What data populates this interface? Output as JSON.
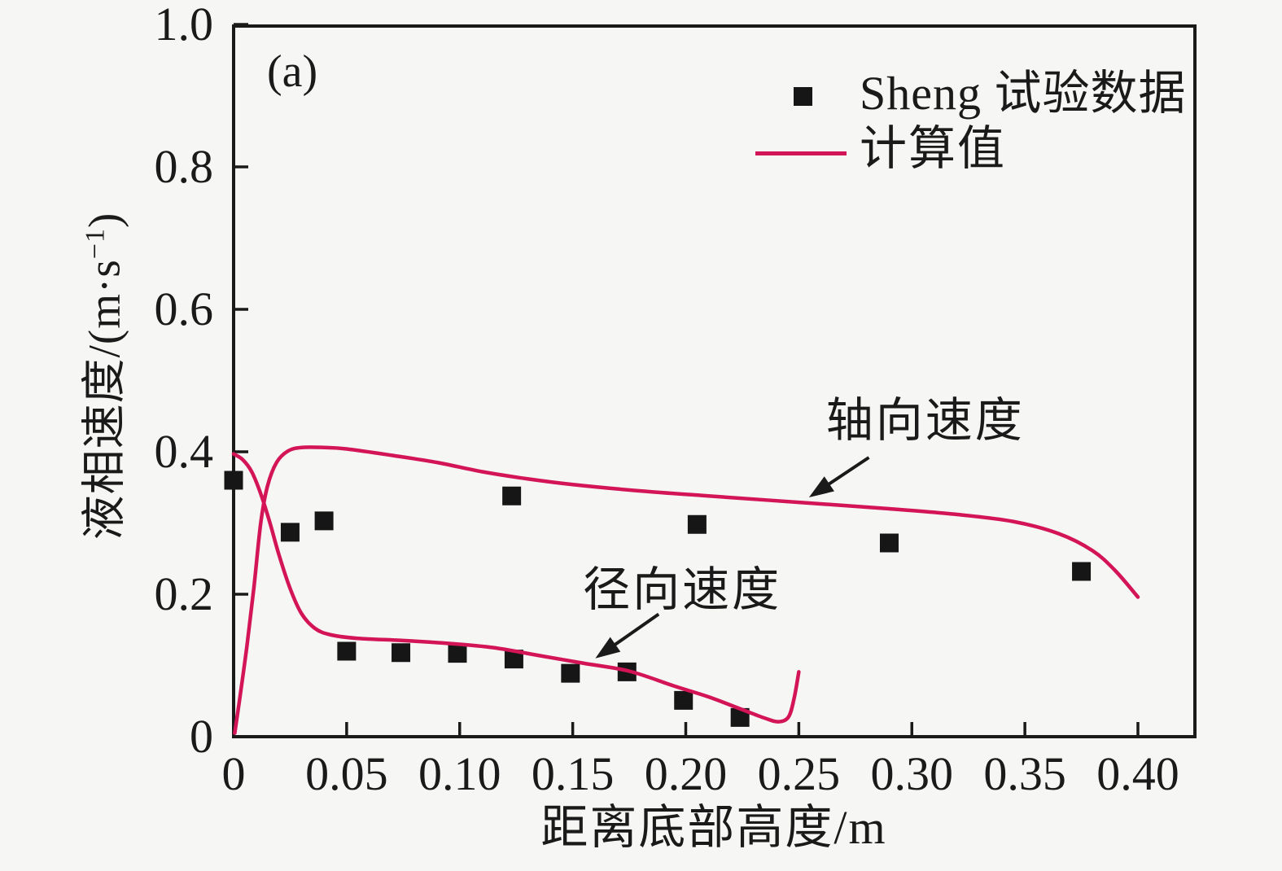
{
  "page": {
    "background": "#f6f6f4",
    "ink_color": "#1a1a1a"
  },
  "labels": {
    "panel": "(a)",
    "ylabel_main": "液相速度/(m·s",
    "ylabel_sup": "−1",
    "ylabel_close": ")"
  },
  "chart_data": {
    "type": "line",
    "panel": "(a)",
    "xlabel": "距离底部高度/m",
    "ylabel": "液相速度/(m·s⁻¹)",
    "xlim": [
      0,
      0.425
    ],
    "ylim": [
      0,
      1.0
    ],
    "grid": false,
    "legend_position": "upper-right-inside",
    "xticks": [
      0,
      0.05,
      0.1,
      0.15,
      0.2,
      0.25,
      0.3,
      0.35,
      0.4
    ],
    "xtick_labels": [
      "0",
      "0.05",
      "0.10",
      "0.15",
      "0.20",
      "0.25",
      "0.30",
      "0.35",
      "0.40"
    ],
    "yticks": [
      0,
      0.2,
      0.4,
      0.6,
      0.8,
      1.0
    ],
    "ytick_labels": [
      "0",
      "0.2",
      "0.4",
      "0.6",
      "0.8",
      "1.0"
    ],
    "legend": [
      {
        "label": "Sheng 试验数据",
        "kind": "marker",
        "color": "#161616"
      },
      {
        "label": "计算值",
        "kind": "line",
        "color": "#d31557"
      }
    ],
    "series": [
      {
        "name": "Sheng 试验数据 — 轴向速度",
        "kind": "scatter",
        "marker": "square",
        "color": "#161616",
        "points": [
          [
            0,
            0.36
          ],
          [
            0.025,
            0.287
          ],
          [
            0.04,
            0.303
          ],
          [
            0.123,
            0.338
          ],
          [
            0.205,
            0.298
          ],
          [
            0.29,
            0.272
          ],
          [
            0.375,
            0.232
          ]
        ]
      },
      {
        "name": "Sheng 试验数据 — 径向速度",
        "kind": "scatter",
        "marker": "square",
        "color": "#161616",
        "points": [
          [
            0.05,
            0.12
          ],
          [
            0.074,
            0.118
          ],
          [
            0.099,
            0.117
          ],
          [
            0.124,
            0.109
          ],
          [
            0.149,
            0.089
          ],
          [
            0.174,
            0.091
          ],
          [
            0.199,
            0.051
          ],
          [
            0.224,
            0.027
          ]
        ]
      },
      {
        "name": "计算值 — 轴向速度",
        "kind": "line",
        "color": "#d31557",
        "points": [
          [
            0.0005,
            0.005
          ],
          [
            0.003,
            0.06
          ],
          [
            0.006,
            0.13
          ],
          [
            0.009,
            0.21
          ],
          [
            0.012,
            0.3
          ],
          [
            0.015,
            0.352
          ],
          [
            0.019,
            0.385
          ],
          [
            0.024,
            0.401
          ],
          [
            0.03,
            0.406
          ],
          [
            0.04,
            0.406
          ],
          [
            0.05,
            0.404
          ],
          [
            0.07,
            0.395
          ],
          [
            0.09,
            0.385
          ],
          [
            0.11,
            0.372
          ],
          [
            0.13,
            0.362
          ],
          [
            0.15,
            0.354
          ],
          [
            0.18,
            0.345
          ],
          [
            0.21,
            0.338
          ],
          [
            0.25,
            0.329
          ],
          [
            0.29,
            0.32
          ],
          [
            0.32,
            0.312
          ],
          [
            0.345,
            0.302
          ],
          [
            0.365,
            0.285
          ],
          [
            0.38,
            0.261
          ],
          [
            0.39,
            0.233
          ],
          [
            0.4,
            0.196
          ]
        ]
      },
      {
        "name": "计算值 — 径向速度",
        "kind": "line",
        "color": "#d31557",
        "points": [
          [
            0,
            0.397
          ],
          [
            0.004,
            0.389
          ],
          [
            0.008,
            0.372
          ],
          [
            0.012,
            0.341
          ],
          [
            0.016,
            0.301
          ],
          [
            0.02,
            0.256
          ],
          [
            0.025,
            0.208
          ],
          [
            0.03,
            0.173
          ],
          [
            0.036,
            0.152
          ],
          [
            0.043,
            0.143
          ],
          [
            0.055,
            0.138
          ],
          [
            0.075,
            0.135
          ],
          [
            0.095,
            0.131
          ],
          [
            0.115,
            0.125
          ],
          [
            0.135,
            0.114
          ],
          [
            0.155,
            0.103
          ],
          [
            0.175,
            0.092
          ],
          [
            0.195,
            0.071
          ],
          [
            0.21,
            0.056
          ],
          [
            0.225,
            0.038
          ],
          [
            0.235,
            0.026
          ],
          [
            0.241,
            0.021
          ],
          [
            0.2455,
            0.028
          ],
          [
            0.248,
            0.055
          ],
          [
            0.25,
            0.091
          ]
        ]
      }
    ],
    "annotations": [
      {
        "text": "轴向速度",
        "text_xy": [
          0.262,
          0.477
        ],
        "arrow_from": [
          0.281,
          0.392
        ],
        "arrow_to": [
          0.2545,
          0.336
        ]
      },
      {
        "text": "径向速度",
        "text_xy": [
          0.1545,
          0.239
        ],
        "arrow_from": [
          0.188,
          0.172
        ],
        "arrow_to": [
          0.16,
          0.11
        ]
      }
    ]
  }
}
